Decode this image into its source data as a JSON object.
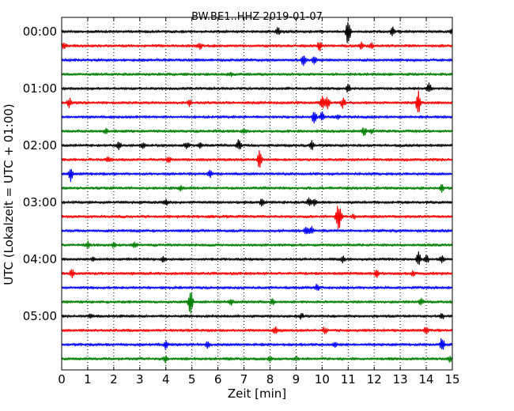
{
  "chart_data": {
    "type": "line",
    "title": "BW.BE1..HHZ 2019-01-07",
    "xlabel": "Zeit  [min]",
    "ylabel": "UTC (Lokalzeit = UTC + 01:00)",
    "xlim": [
      0,
      15
    ],
    "x_ticks": [
      "0",
      "1",
      "2",
      "3",
      "4",
      "5",
      "6",
      "7",
      "8",
      "9",
      "10",
      "11",
      "12",
      "13",
      "14",
      "15"
    ],
    "y_tick_labels": [
      "00:00",
      "01:00",
      "02:00",
      "03:00",
      "04:00",
      "05:00"
    ],
    "y_tick_traces": [
      0,
      4,
      8,
      12,
      16,
      20
    ],
    "grid": {
      "vertical_dotted": true
    },
    "trace_colors": [
      "#000000",
      "#ff0000",
      "#0000ff",
      "#008000"
    ],
    "traces": [
      {
        "start": "00:00",
        "events": [
          [
            8.3,
            0.25
          ],
          [
            11.0,
            1.0
          ],
          [
            12.7,
            0.35
          ],
          [
            15.0,
            0.2
          ]
        ]
      },
      {
        "start": "00:15",
        "events": [
          [
            0.1,
            0.2
          ],
          [
            5.3,
            0.2
          ],
          [
            9.9,
            0.3
          ],
          [
            11.5,
            0.2
          ],
          [
            11.9,
            0.15
          ]
        ]
      },
      {
        "start": "00:30",
        "events": [
          [
            9.3,
            0.4
          ],
          [
            9.7,
            0.2
          ]
        ]
      },
      {
        "start": "00:45",
        "events": [
          [
            6.5,
            0.1
          ]
        ]
      },
      {
        "start": "01:00",
        "events": [
          [
            11.0,
            0.25
          ],
          [
            14.1,
            0.3
          ]
        ]
      },
      {
        "start": "01:15",
        "events": [
          [
            0.3,
            0.3
          ],
          [
            4.9,
            0.2
          ],
          [
            10.0,
            0.5
          ],
          [
            10.2,
            0.5
          ],
          [
            10.8,
            0.3
          ],
          [
            13.7,
            0.8
          ]
        ]
      },
      {
        "start": "01:30",
        "events": [
          [
            9.7,
            0.4
          ],
          [
            10.0,
            0.3
          ],
          [
            10.6,
            0.15
          ]
        ]
      },
      {
        "start": "01:45",
        "events": [
          [
            1.7,
            0.15
          ],
          [
            7.0,
            0.15
          ],
          [
            11.6,
            0.3
          ],
          [
            11.9,
            0.15
          ]
        ]
      },
      {
        "start": "02:00",
        "events": [
          [
            2.2,
            0.25
          ],
          [
            3.1,
            0.2
          ],
          [
            4.8,
            0.2
          ],
          [
            5.3,
            0.2
          ],
          [
            6.8,
            0.4
          ],
          [
            9.6,
            0.3
          ]
        ]
      },
      {
        "start": "02:15",
        "events": [
          [
            1.8,
            0.15
          ],
          [
            4.1,
            0.15
          ],
          [
            7.6,
            0.7
          ]
        ]
      },
      {
        "start": "02:30",
        "events": [
          [
            0.35,
            0.5
          ],
          [
            5.7,
            0.2
          ]
        ]
      },
      {
        "start": "02:45",
        "events": [
          [
            4.6,
            0.15
          ],
          [
            14.6,
            0.25
          ]
        ]
      },
      {
        "start": "03:00",
        "events": [
          [
            4.0,
            0.2
          ],
          [
            7.7,
            0.35
          ],
          [
            9.5,
            0.3
          ],
          [
            9.7,
            0.25
          ]
        ]
      },
      {
        "start": "03:15",
        "events": [
          [
            10.6,
            0.7
          ],
          [
            10.7,
            0.5
          ],
          [
            11.2,
            0.15
          ]
        ]
      },
      {
        "start": "03:30",
        "events": [
          [
            9.4,
            0.3
          ],
          [
            9.6,
            0.25
          ]
        ]
      },
      {
        "start": "03:45",
        "events": [
          [
            1.0,
            0.2
          ],
          [
            2.0,
            0.2
          ],
          [
            2.8,
            0.2
          ]
        ]
      },
      {
        "start": "04:00",
        "events": [
          [
            1.2,
            0.15
          ],
          [
            3.9,
            0.15
          ],
          [
            10.8,
            0.2
          ],
          [
            13.7,
            0.5
          ],
          [
            14.0,
            0.3
          ],
          [
            14.6,
            0.2
          ]
        ]
      },
      {
        "start": "04:15",
        "events": [
          [
            0.4,
            0.25
          ],
          [
            12.1,
            0.3
          ],
          [
            13.5,
            0.15
          ]
        ]
      },
      {
        "start": "04:30",
        "events": [
          [
            9.8,
            0.2
          ]
        ]
      },
      {
        "start": "04:45",
        "events": [
          [
            4.95,
            0.9
          ],
          [
            6.5,
            0.2
          ],
          [
            8.1,
            0.2
          ],
          [
            13.8,
            0.2
          ]
        ]
      },
      {
        "start": "05:00",
        "events": [
          [
            1.1,
            0.15
          ],
          [
            9.2,
            0.15
          ],
          [
            14.6,
            0.15
          ]
        ]
      },
      {
        "start": "05:15",
        "events": [
          [
            8.2,
            0.25
          ],
          [
            10.1,
            0.2
          ],
          [
            14.0,
            0.25
          ]
        ]
      },
      {
        "start": "05:30",
        "events": [
          [
            4.0,
            0.25
          ],
          [
            5.6,
            0.2
          ],
          [
            10.5,
            0.15
          ],
          [
            14.6,
            0.5
          ]
        ]
      },
      {
        "start": "05:45",
        "events": [
          [
            4.0,
            0.2
          ],
          [
            8.0,
            0.15
          ],
          [
            9.0,
            0.15
          ],
          [
            14.9,
            0.2
          ]
        ]
      }
    ]
  }
}
